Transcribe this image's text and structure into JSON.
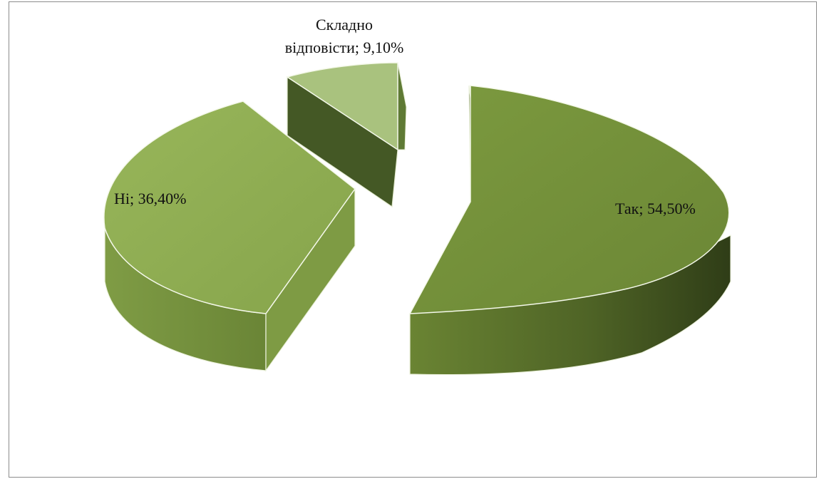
{
  "chart_data": {
    "type": "pie",
    "style": "3d-exploded",
    "slices": [
      {
        "name": "Так",
        "value": 54.5,
        "label": "Так; 54,50%",
        "color": "#77933c"
      },
      {
        "name": "Ні",
        "value": 36.4,
        "label": "Ні; 36,40%",
        "color": "#8fad52"
      },
      {
        "name": "Складно відповісти",
        "value": 9.1,
        "label_lines": [
          "Складно",
          "відповісти; 9,10%"
        ],
        "color": "#a9c27e"
      }
    ]
  }
}
